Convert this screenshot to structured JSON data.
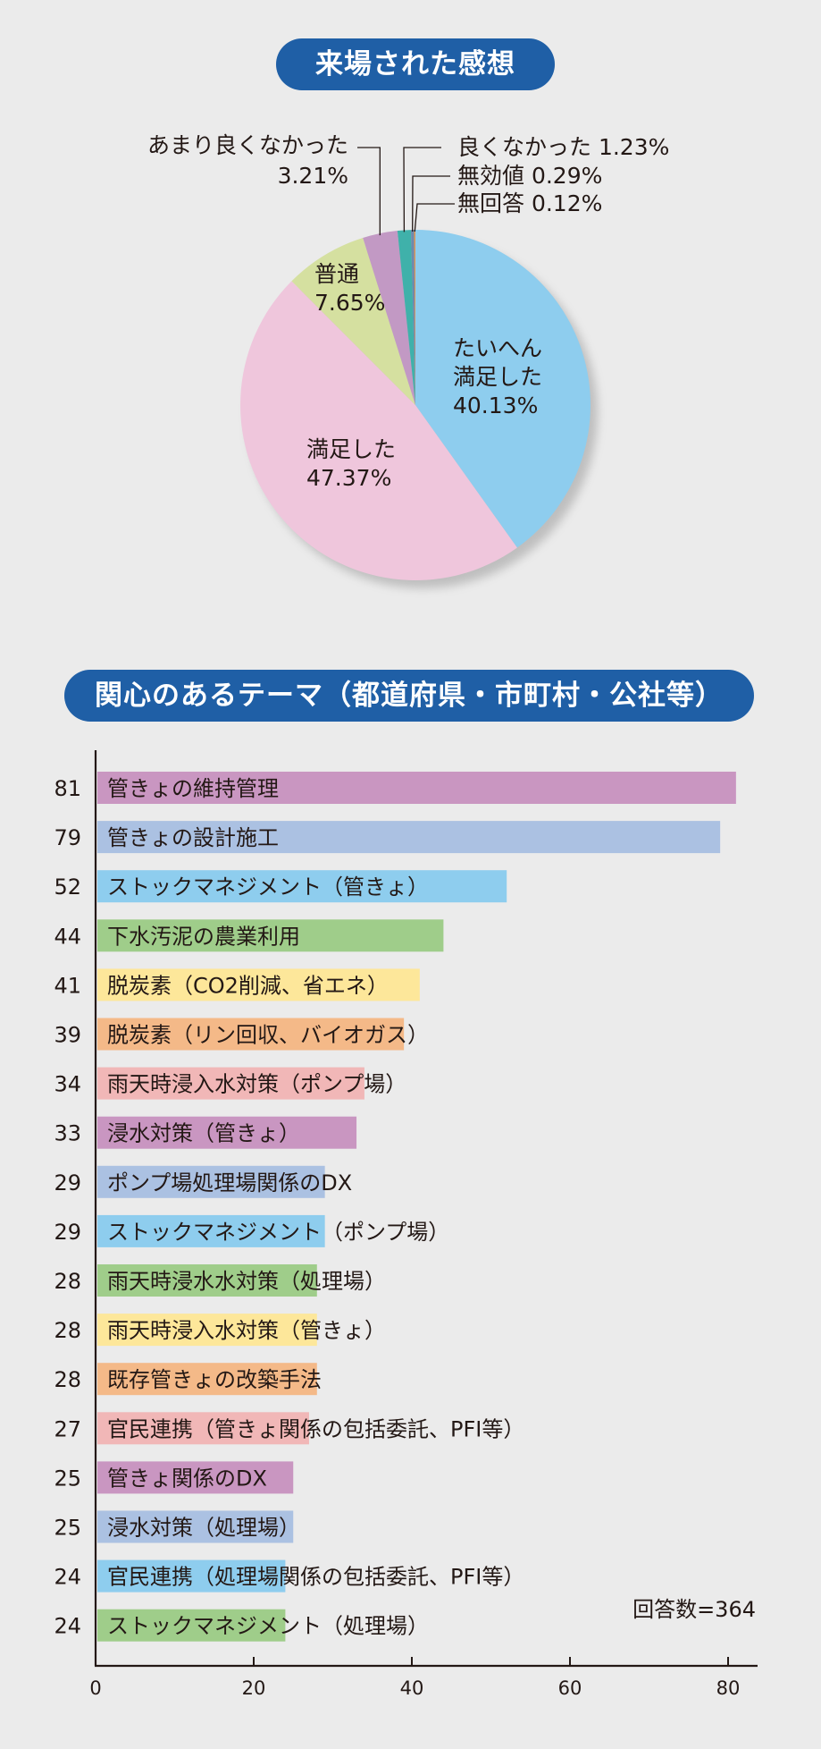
{
  "pie_section": {
    "title": "来場された感想"
  },
  "bar_section": {
    "title": "関心のあるテーマ（都道府県・市町村・公社等）",
    "respondents": "回答数=364"
  },
  "colors": {
    "title_bg": "#1f5fa6",
    "purple": "#c996c1",
    "blue": "#abc1e2",
    "sky": "#8ecdee",
    "green": "#9fcd8a",
    "yellow": "#fde79a",
    "orange": "#f4b988",
    "pink": "#f1b7b7",
    "pie_light_blue": "#8ecdee",
    "pie_pink": "#efc6dc",
    "pie_green": "#d5e0a0",
    "pie_purple": "#c299c4",
    "pie_teal": "#3fb1aa",
    "pie_slate": "#6f89ad",
    "pie_orange": "#e0954f"
  },
  "chart_data": [
    {
      "type": "pie",
      "title": "来場された感想",
      "slices": [
        {
          "label": "たいへん\n満足した",
          "value": 40.13,
          "display": "40.13%",
          "color": "#8ecdee"
        },
        {
          "label": "満足した",
          "value": 47.37,
          "display": "47.37%",
          "color": "#efc6dc"
        },
        {
          "label": "普通",
          "value": 7.65,
          "display": "7.65%",
          "color": "#d5e0a0"
        },
        {
          "label": "あまり良くなかった",
          "value": 3.21,
          "display": "3.21%",
          "color": "#c299c4"
        },
        {
          "label": "良くなかった",
          "value": 1.23,
          "display": "1.23%",
          "color": "#3fb1aa"
        },
        {
          "label": "無効値",
          "value": 0.29,
          "display": "0.29%",
          "color": "#6f89ad"
        },
        {
          "label": "無回答",
          "value": 0.12,
          "display": "0.12%",
          "color": "#e0954f"
        }
      ]
    },
    {
      "type": "bar",
      "orientation": "horizontal",
      "title": "関心のあるテーマ（都道府県・市町村・公社等）",
      "xlim": [
        0,
        84
      ],
      "xticks": [
        0,
        20,
        40,
        60,
        80
      ],
      "annotation": "回答数=364",
      "categories": [
        "管きょの維持管理",
        "管きょの設計施工",
        "ストックマネジメント（管きょ）",
        "下水汚泥の農業利用",
        "脱炭素（CO2削減、省エネ）",
        "脱炭素（リン回収、バイオガス）",
        "雨天時浸入水対策（ポンプ場）",
        "浸水対策（管きょ）",
        "ポンプ場処理場関係のDX",
        "ストックマネジメント（ポンプ場）",
        "雨天時浸水水対策（処理場）",
        "雨天時浸入水対策（管きょ）",
        "既存管きょの改築手法",
        "官民連携（管きょ関係の包括委託、PFI等）",
        "管きょ関係のDX",
        "浸水対策（処理場）",
        "官民連携（処理場関係の包括委託、PFI等）",
        "ストックマネジメント（処理場）"
      ],
      "values": [
        81,
        79,
        52,
        44,
        41,
        39,
        34,
        33,
        29,
        29,
        28,
        28,
        28,
        27,
        25,
        25,
        24,
        24
      ],
      "bar_colors": [
        "#c996c1",
        "#abc1e2",
        "#8ecdee",
        "#9fcd8a",
        "#fde79a",
        "#f4b988",
        "#f1b7b7",
        "#c996c1",
        "#abc1e2",
        "#8ecdee",
        "#9fcd8a",
        "#fde79a",
        "#f4b988",
        "#f1b7b7",
        "#c996c1",
        "#abc1e2",
        "#8ecdee",
        "#9fcd8a"
      ]
    }
  ]
}
